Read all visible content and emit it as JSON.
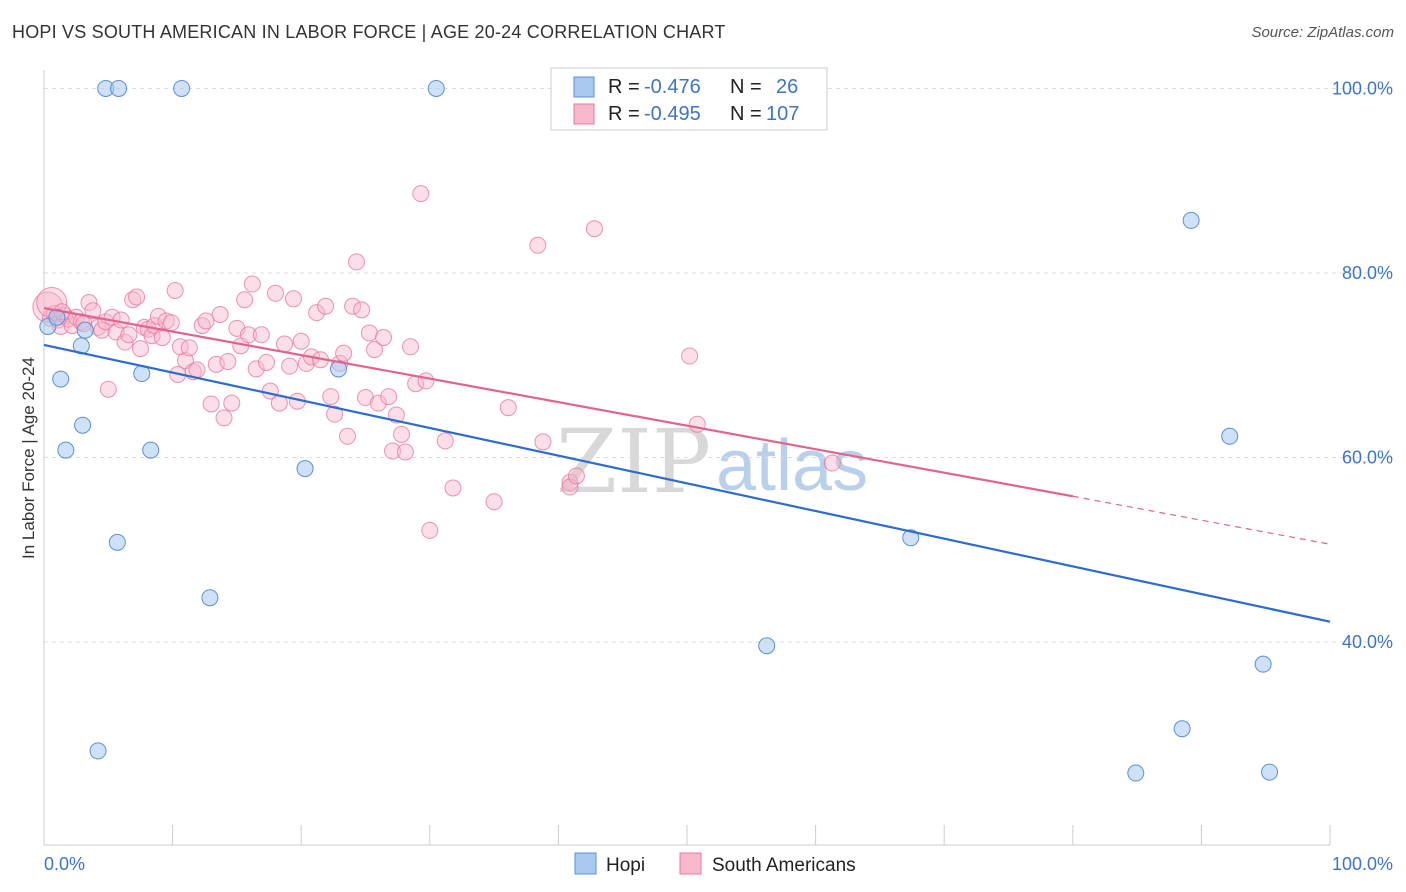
{
  "title": "HOPI VS SOUTH AMERICAN IN LABOR FORCE | AGE 20-24 CORRELATION CHART",
  "source": "Source: ZipAtlas.com",
  "watermark": {
    "zip": "ZIP",
    "atlas": "atlas"
  },
  "colors": {
    "hopi_fill": "#a8c8f0",
    "hopi_stroke": "#5a8fd8",
    "hopi_line": "#2a6ccf",
    "sa_fill": "#f7b8cb",
    "sa_stroke": "#e8789c",
    "sa_line": "#e0648c",
    "axis_text": "#3d74c8",
    "grid": "#dddddd"
  },
  "legend": {
    "rows": [
      {
        "r_label": "R =",
        "r_value": "-0.476",
        "n_label": "N =",
        "n_value": "26"
      },
      {
        "r_label": "R =",
        "r_value": "-0.495",
        "n_label": "N =",
        "n_value": "107"
      }
    ]
  },
  "chart_data": {
    "type": "scatter",
    "title": "HOPI VS SOUTH AMERICAN IN LABOR FORCE | AGE 20-24 CORRELATION CHART",
    "xlabel": "",
    "ylabel": "In Labor Force | Age 20-24",
    "xlim": [
      0,
      100
    ],
    "ylim": [
      18,
      102
    ],
    "x_tick_labels": [
      "0.0%",
      "100.0%"
    ],
    "y_ticks": [
      40,
      60,
      80,
      100
    ],
    "y_tick_labels": [
      "40.0%",
      "60.0%",
      "80.0%",
      "100.0%"
    ],
    "series": [
      {
        "name": "Hopi",
        "r": -0.476,
        "n": 26,
        "trend": {
          "x0": 0,
          "y0": 72.2,
          "x1": 100,
          "y1": 42.2
        },
        "points": [
          [
            0.3,
            74.2
          ],
          [
            1.0,
            75.2
          ],
          [
            1.3,
            68.5
          ],
          [
            1.7,
            60.8
          ],
          [
            2.9,
            72.1
          ],
          [
            3.0,
            63.5
          ],
          [
            3.2,
            73.8
          ],
          [
            4.2,
            28.2
          ],
          [
            4.8,
            100.0
          ],
          [
            5.8,
            100.0
          ],
          [
            5.7,
            50.8
          ],
          [
            7.6,
            69.1
          ],
          [
            8.3,
            60.8
          ],
          [
            10.7,
            100.0
          ],
          [
            12.9,
            44.8
          ],
          [
            20.3,
            58.8
          ],
          [
            22.9,
            69.6
          ],
          [
            30.5,
            100.0
          ],
          [
            67.4,
            51.3
          ],
          [
            56.2,
            39.6
          ],
          [
            89.2,
            85.7
          ],
          [
            92.2,
            62.3
          ],
          [
            88.5,
            30.6
          ],
          [
            84.9,
            25.8
          ],
          [
            94.8,
            37.6
          ],
          [
            95.3,
            25.9
          ]
        ]
      },
      {
        "name": "South Americans",
        "r": -0.495,
        "n": 107,
        "trend": {
          "x0": 0,
          "y0": 76.2,
          "x1": 80,
          "y1": 55.8
        },
        "trend_dashed": {
          "x0": 80,
          "y0": 55.8,
          "x1": 100,
          "y1": 50.6
        },
        "points": [
          [
            0.3,
            76.3
          ],
          [
            0.5,
            75.1
          ],
          [
            0.8,
            75.6
          ],
          [
            1.1,
            74.9
          ],
          [
            1.3,
            74.2
          ],
          [
            1.6,
            75.4
          ],
          [
            1.9,
            75.0
          ],
          [
            2.2,
            74.3
          ],
          [
            2.5,
            75.2
          ],
          [
            2.9,
            74.7
          ],
          [
            3.1,
            74.5
          ],
          [
            3.5,
            76.8
          ],
          [
            3.8,
            75.9
          ],
          [
            4.2,
            74.1
          ],
          [
            4.5,
            73.8
          ],
          [
            4.8,
            74.7
          ],
          [
            5.0,
            67.4
          ],
          [
            5.3,
            75.2
          ],
          [
            5.6,
            73.6
          ],
          [
            6.0,
            74.9
          ],
          [
            6.3,
            72.5
          ],
          [
            6.6,
            73.3
          ],
          [
            6.9,
            77.1
          ],
          [
            7.2,
            77.4
          ],
          [
            7.5,
            71.8
          ],
          [
            7.8,
            74.1
          ],
          [
            8.1,
            73.9
          ],
          [
            8.4,
            73.2
          ],
          [
            8.6,
            74.3
          ],
          [
            8.9,
            75.3
          ],
          [
            9.2,
            73.0
          ],
          [
            9.5,
            74.8
          ],
          [
            9.9,
            74.6
          ],
          [
            10.2,
            78.1
          ],
          [
            10.4,
            69.0
          ],
          [
            10.6,
            72.0
          ],
          [
            11.0,
            70.5
          ],
          [
            11.3,
            71.9
          ],
          [
            11.6,
            69.3
          ],
          [
            11.9,
            69.5
          ],
          [
            12.3,
            74.3
          ],
          [
            12.6,
            74.8
          ],
          [
            13.0,
            65.8
          ],
          [
            13.4,
            70.1
          ],
          [
            13.7,
            75.5
          ],
          [
            14.0,
            64.3
          ],
          [
            14.3,
            70.4
          ],
          [
            14.6,
            65.9
          ],
          [
            15.0,
            74.0
          ],
          [
            15.3,
            72.1
          ],
          [
            15.6,
            77.1
          ],
          [
            15.9,
            73.3
          ],
          [
            16.2,
            78.8
          ],
          [
            16.5,
            69.6
          ],
          [
            16.9,
            73.3
          ],
          [
            17.3,
            70.3
          ],
          [
            17.6,
            67.2
          ],
          [
            18.0,
            77.8
          ],
          [
            18.3,
            65.9
          ],
          [
            18.7,
            72.3
          ],
          [
            19.1,
            69.9
          ],
          [
            19.4,
            77.2
          ],
          [
            19.7,
            66.1
          ],
          [
            20.0,
            72.6
          ],
          [
            20.4,
            70.2
          ],
          [
            20.8,
            70.9
          ],
          [
            21.2,
            75.7
          ],
          [
            21.5,
            70.6
          ],
          [
            21.9,
            76.4
          ],
          [
            22.3,
            66.6
          ],
          [
            22.6,
            64.7
          ],
          [
            23.0,
            70.2
          ],
          [
            23.3,
            71.3
          ],
          [
            23.6,
            62.3
          ],
          [
            24.0,
            76.4
          ],
          [
            24.3,
            81.2
          ],
          [
            24.7,
            76.0
          ],
          [
            25.0,
            66.5
          ],
          [
            25.3,
            73.5
          ],
          [
            25.7,
            71.7
          ],
          [
            26.0,
            65.9
          ],
          [
            26.4,
            73.0
          ],
          [
            26.8,
            66.6
          ],
          [
            27.1,
            60.7
          ],
          [
            27.4,
            64.6
          ],
          [
            27.8,
            62.5
          ],
          [
            28.1,
            60.6
          ],
          [
            28.5,
            72.0
          ],
          [
            28.9,
            68.0
          ],
          [
            29.3,
            88.6
          ],
          [
            29.7,
            68.3
          ],
          [
            30.0,
            52.1
          ],
          [
            31.2,
            61.8
          ],
          [
            31.8,
            56.7
          ],
          [
            35.0,
            55.2
          ],
          [
            36.1,
            65.4
          ],
          [
            38.4,
            83.0
          ],
          [
            38.8,
            61.7
          ],
          [
            40.9,
            57.3
          ],
          [
            40.9,
            56.8
          ],
          [
            41.4,
            58.0
          ],
          [
            42.8,
            84.8
          ],
          [
            50.2,
            71.0
          ],
          [
            50.8,
            63.6
          ],
          [
            61.3,
            59.4
          ],
          [
            0.6,
            76.8
          ],
          [
            1.4,
            75.8
          ]
        ]
      }
    ],
    "legend": [
      "Hopi",
      "South Americans"
    ]
  }
}
